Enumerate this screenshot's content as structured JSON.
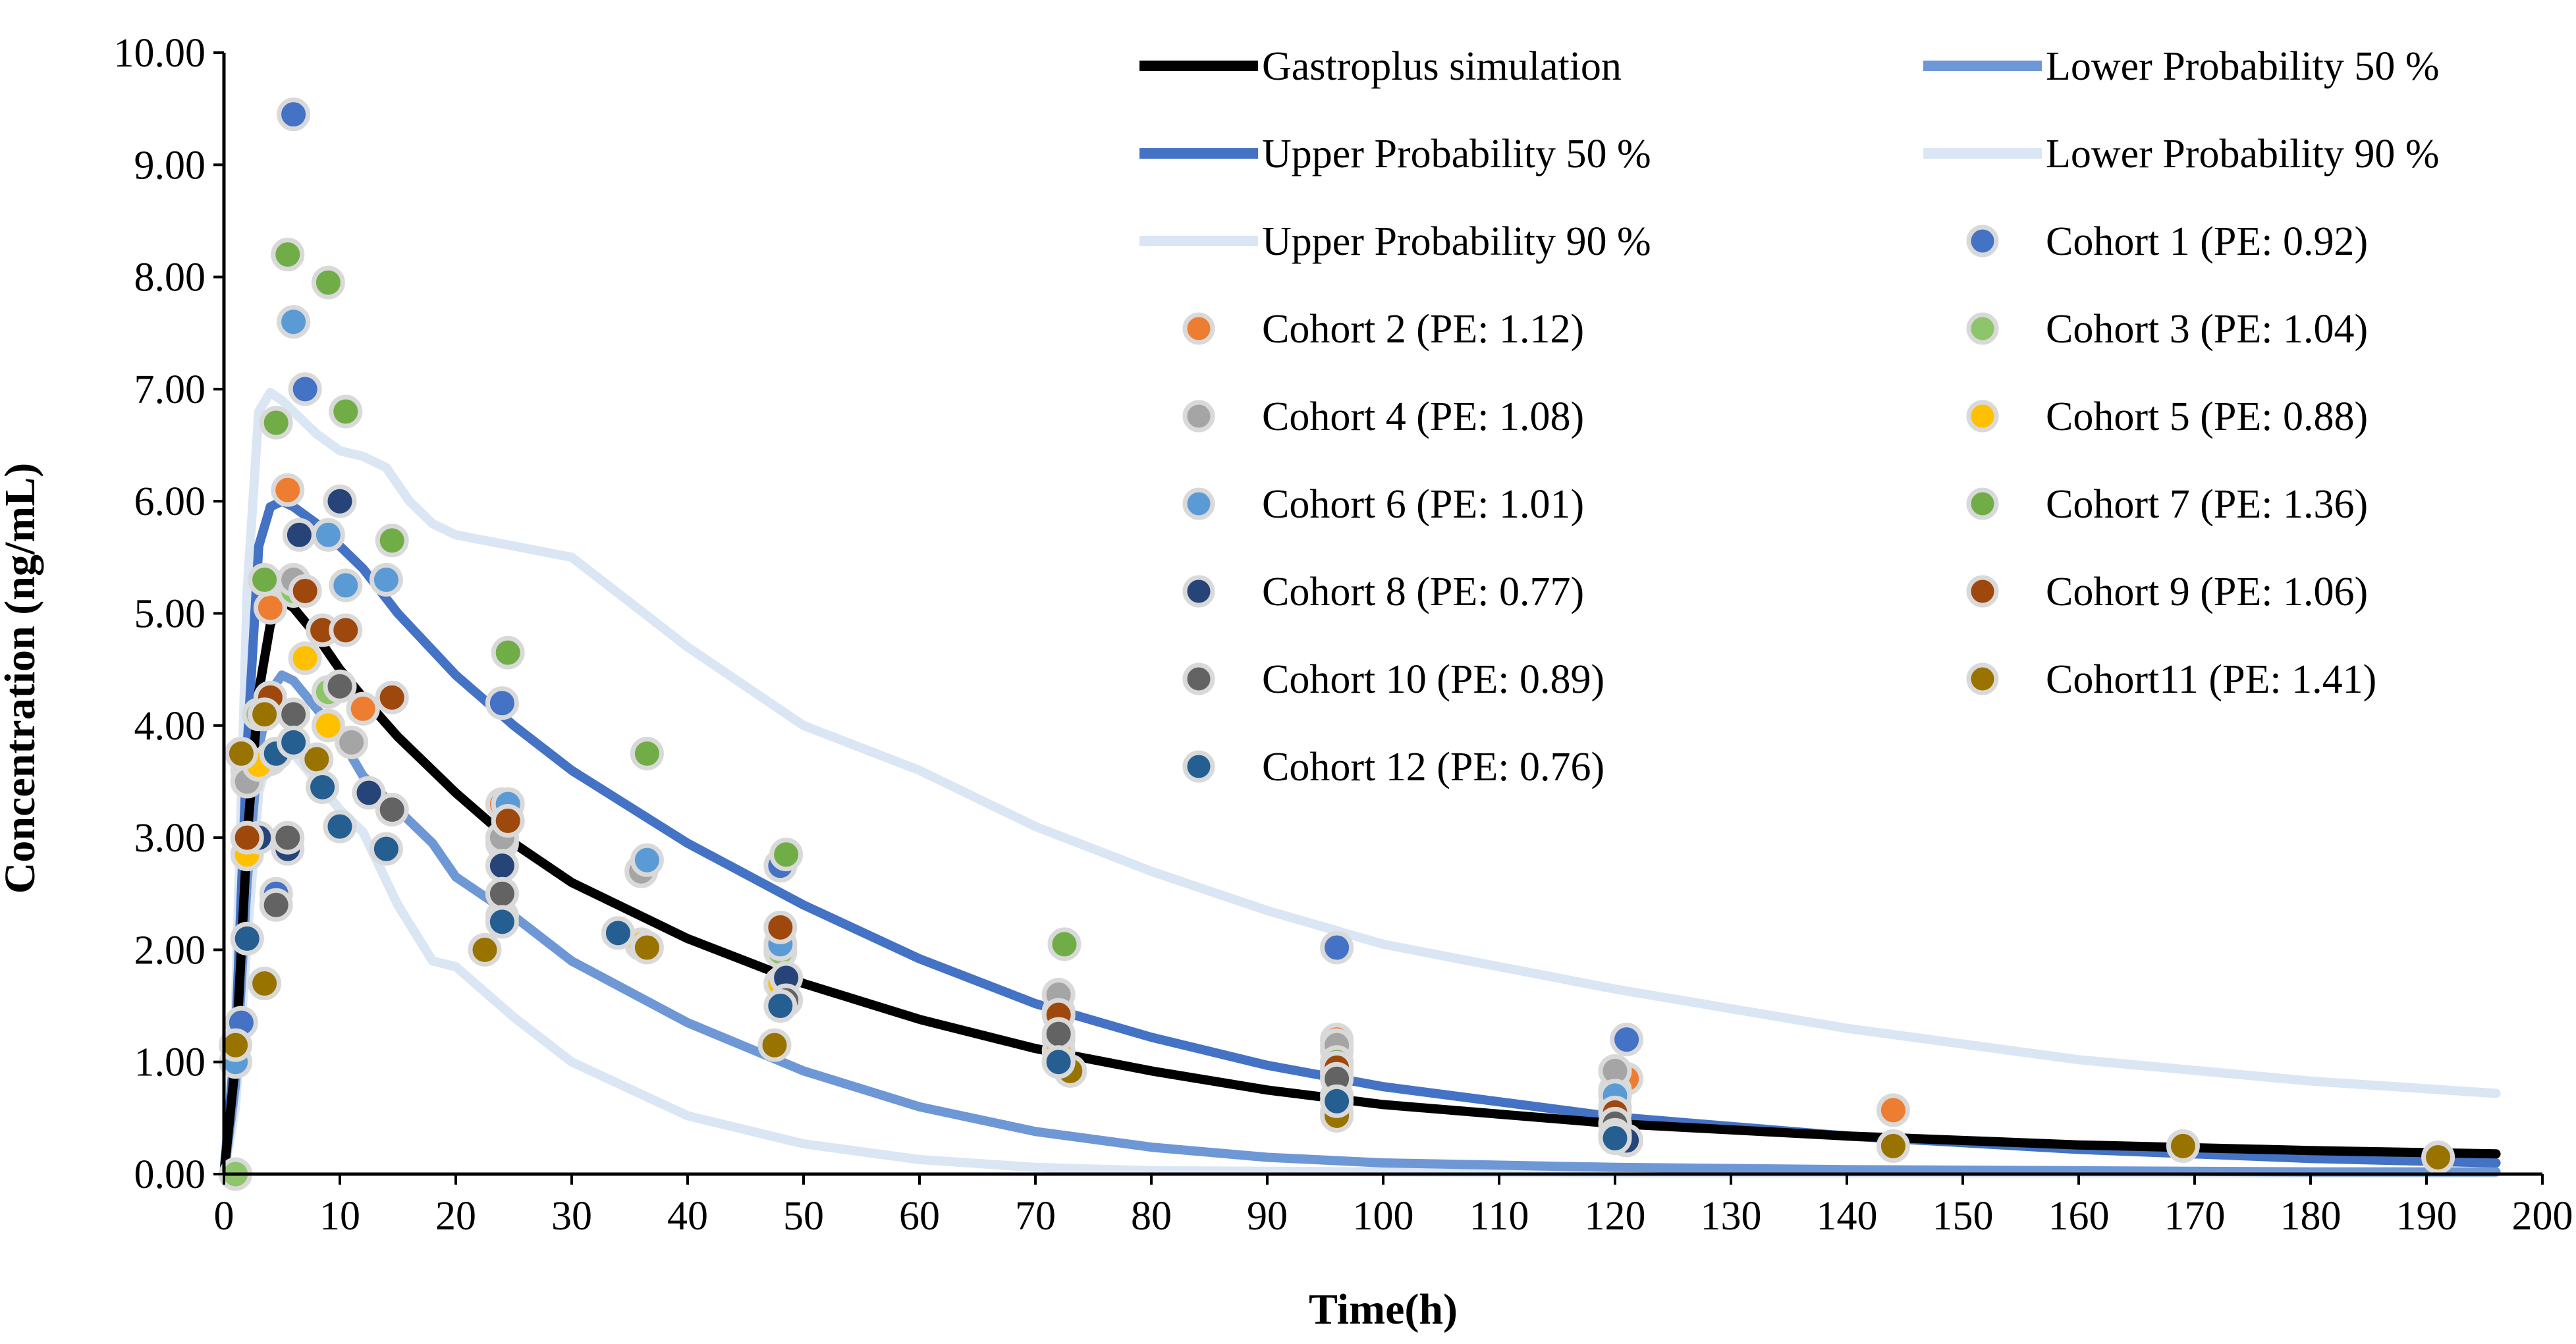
{
  "chart_data": {
    "type": "line",
    "xlabel": "Time(h)",
    "ylabel": "Concentration (ng/mL)",
    "xlim": [
      0,
      200
    ],
    "ylim": [
      0,
      10
    ],
    "x_ticks": [
      "0",
      "10",
      "20",
      "30",
      "40",
      "50",
      "60",
      "70",
      "80",
      "90",
      "100",
      "110",
      "120",
      "130",
      "140",
      "150",
      "160",
      "170",
      "180",
      "190",
      "200"
    ],
    "y_ticks": [
      "0.00",
      "1.00",
      "2.00",
      "3.00",
      "4.00",
      "5.00",
      "6.00",
      "7.00",
      "8.00",
      "9.00",
      "10.00"
    ],
    "legend_position": "top-right",
    "lines": [
      {
        "name": "Gastroplus simulation",
        "color": "#000000",
        "width": 14,
        "x": [
          0,
          1,
          2,
          3,
          4,
          5,
          6,
          8,
          10,
          12,
          15,
          20,
          25,
          30,
          40,
          50,
          60,
          70,
          80,
          90,
          100,
          120,
          140,
          160,
          180,
          196
        ],
        "y": [
          0,
          1.0,
          3.0,
          4.3,
          4.9,
          5.12,
          5.05,
          4.8,
          4.5,
          4.25,
          3.9,
          3.4,
          2.95,
          2.6,
          2.1,
          1.7,
          1.38,
          1.12,
          0.92,
          0.75,
          0.62,
          0.45,
          0.34,
          0.26,
          0.21,
          0.18
        ]
      },
      {
        "name": "Lower Probability 50 %",
        "color": "#6E97D6",
        "width": 14,
        "x": [
          0,
          1,
          2,
          3,
          4,
          5,
          6,
          8,
          10,
          12,
          15,
          18,
          20,
          25,
          30,
          40,
          50,
          60,
          70,
          80,
          90,
          100,
          120,
          140,
          160,
          180,
          196
        ],
        "y": [
          0,
          0.8,
          2.6,
          3.8,
          4.3,
          4.45,
          4.4,
          4.15,
          3.9,
          3.55,
          3.25,
          2.95,
          2.65,
          2.3,
          1.9,
          1.35,
          0.92,
          0.6,
          0.38,
          0.24,
          0.15,
          0.1,
          0.06,
          0.04,
          0.03,
          0.02,
          0.02
        ]
      },
      {
        "name": "Upper Probability 50 %",
        "color": "#4472C4",
        "width": 14,
        "x": [
          0,
          1,
          2,
          3,
          4,
          5,
          6,
          8,
          10,
          12,
          15,
          20,
          25,
          30,
          40,
          50,
          60,
          70,
          80,
          90,
          100,
          120,
          140,
          160,
          180,
          196
        ],
        "y": [
          0,
          1.2,
          3.8,
          5.6,
          5.95,
          6.0,
          5.95,
          5.8,
          5.6,
          5.4,
          5.0,
          4.45,
          4.0,
          3.6,
          2.95,
          2.4,
          1.92,
          1.52,
          1.22,
          0.97,
          0.78,
          0.51,
          0.34,
          0.22,
          0.14,
          0.1
        ]
      },
      {
        "name": "Lower Probability 90 %",
        "color": "#DAE6F3",
        "width": 14,
        "x": [
          0,
          1,
          2,
          3,
          4,
          5,
          6,
          8,
          10,
          12,
          15,
          18,
          20,
          25,
          30,
          40,
          50,
          60,
          70,
          80,
          100,
          120,
          160,
          196
        ],
        "y": [
          0,
          0.6,
          2.1,
          3.4,
          3.8,
          3.85,
          3.75,
          3.5,
          3.25,
          3.05,
          2.4,
          1.9,
          1.85,
          1.4,
          1.0,
          0.52,
          0.27,
          0.13,
          0.06,
          0.03,
          0.02,
          0.01,
          0.01,
          0.01
        ]
      },
      {
        "name": "Upper Probability 90 %",
        "color": "#DAE6F3",
        "width": 14,
        "x": [
          0,
          1,
          2,
          3,
          4,
          5,
          6,
          8,
          10,
          12,
          14,
          16,
          18,
          20,
          25,
          30,
          40,
          50,
          60,
          70,
          80,
          90,
          100,
          120,
          140,
          160,
          180,
          196
        ],
        "y": [
          0,
          1.5,
          5.2,
          6.8,
          6.97,
          6.9,
          6.8,
          6.6,
          6.45,
          6.4,
          6.3,
          6.0,
          5.8,
          5.7,
          5.6,
          5.5,
          4.7,
          4.0,
          3.6,
          3.1,
          2.7,
          2.35,
          2.05,
          1.65,
          1.3,
          1.02,
          0.83,
          0.72
        ]
      }
    ],
    "series": [
      {
        "name": "Cohort 1 (PE: 0.92)",
        "color": "#4472C4",
        "points": [
          [
            6,
            9.45
          ],
          [
            7,
            7.0
          ],
          [
            1.5,
            1.35
          ],
          [
            4.5,
            2.5
          ],
          [
            48,
            2.75
          ],
          [
            24,
            4.2
          ],
          [
            96,
            2.02
          ],
          [
            121,
            1.2
          ],
          [
            12,
            4.15
          ],
          [
            2,
            2.1
          ]
        ]
      },
      {
        "name": "Cohort 2 (PE: 1.12)",
        "color": "#ED7D31",
        "points": [
          [
            5.5,
            6.1
          ],
          [
            4,
            5.05
          ],
          [
            12,
            4.15
          ],
          [
            24,
            3.3
          ],
          [
            48,
            2.0
          ],
          [
            72,
            1.45
          ],
          [
            96,
            1.2
          ],
          [
            121,
            0.85
          ],
          [
            144,
            0.57
          ],
          [
            2,
            3.0
          ]
        ]
      },
      {
        "name": "Cohort 3 (PE: 1.04)",
        "color": "#8CC56A",
        "points": [
          [
            1,
            0.0
          ],
          [
            3,
            4.1
          ],
          [
            6,
            5.2
          ],
          [
            24,
            2.95
          ],
          [
            48,
            1.98
          ],
          [
            72,
            1.2
          ],
          [
            96,
            1.1
          ],
          [
            120,
            0.75
          ],
          [
            9,
            4.3
          ],
          [
            2,
            3.6
          ]
        ]
      },
      {
        "name": "Cohort 4 (PE: 1.08)",
        "color": "#A5A5A5",
        "points": [
          [
            2,
            3.5
          ],
          [
            4,
            3.7
          ],
          [
            6,
            5.3
          ],
          [
            11,
            3.85
          ],
          [
            24,
            3.0
          ],
          [
            36,
            2.7
          ],
          [
            48,
            1.7
          ],
          [
            72,
            1.6
          ],
          [
            96,
            1.15
          ],
          [
            120,
            0.92
          ]
        ]
      },
      {
        "name": "Cohort 5 (PE: 0.88)",
        "color": "#FFC000",
        "points": [
          [
            2,
            2.85
          ],
          [
            3,
            3.65
          ],
          [
            7,
            4.6
          ],
          [
            9,
            4.0
          ],
          [
            24,
            2.3
          ],
          [
            36,
            2.05
          ],
          [
            48,
            1.7
          ],
          [
            72,
            1.1
          ],
          [
            96,
            0.7
          ],
          [
            120,
            0.6
          ]
        ]
      },
      {
        "name": "Cohort 6 (PE: 1.01)",
        "color": "#5B9BD5",
        "points": [
          [
            1,
            1.0
          ],
          [
            6,
            7.6
          ],
          [
            9,
            5.7
          ],
          [
            10.5,
            5.25
          ],
          [
            14,
            5.3
          ],
          [
            24.5,
            3.3
          ],
          [
            36.5,
            2.8
          ],
          [
            48,
            2.05
          ],
          [
            96,
            0.9
          ],
          [
            120,
            0.7
          ]
        ]
      },
      {
        "name": "Cohort 7 (PE: 1.36)",
        "color": "#70AD47",
        "points": [
          [
            5.5,
            8.2
          ],
          [
            9,
            7.95
          ],
          [
            4.5,
            6.7
          ],
          [
            10.5,
            6.8
          ],
          [
            3.5,
            5.3
          ],
          [
            14.5,
            5.65
          ],
          [
            24.5,
            4.65
          ],
          [
            36.5,
            3.75
          ],
          [
            48.5,
            2.85
          ],
          [
            72.5,
            2.05
          ],
          [
            96,
            1.0
          ]
        ]
      },
      {
        "name": "Cohort 8 (PE: 0.77)",
        "color": "#264478",
        "points": [
          [
            6.5,
            5.7
          ],
          [
            10,
            6.0
          ],
          [
            12.5,
            3.4
          ],
          [
            5.5,
            2.9
          ],
          [
            24,
            2.75
          ],
          [
            48.5,
            1.75
          ],
          [
            72,
            1.0
          ],
          [
            96,
            0.55
          ],
          [
            121,
            0.3
          ],
          [
            3,
            3.0
          ]
        ]
      },
      {
        "name": "Cohort 9 (PE: 1.06)",
        "color": "#9E480E",
        "points": [
          [
            7,
            5.2
          ],
          [
            8.5,
            4.85
          ],
          [
            10.5,
            4.85
          ],
          [
            4,
            4.25
          ],
          [
            14.5,
            4.25
          ],
          [
            2,
            3.0
          ],
          [
            24.5,
            3.15
          ],
          [
            48,
            2.2
          ],
          [
            72,
            1.42
          ],
          [
            96,
            0.95
          ],
          [
            120,
            0.55
          ]
        ]
      },
      {
        "name": "Cohort 10 (PE: 0.89)",
        "color": "#636363",
        "points": [
          [
            6,
            4.1
          ],
          [
            10,
            4.35
          ],
          [
            14.5,
            3.25
          ],
          [
            5.5,
            3.0
          ],
          [
            4.5,
            2.4
          ],
          [
            24,
            2.5
          ],
          [
            48.5,
            1.55
          ],
          [
            72,
            1.25
          ],
          [
            96,
            0.85
          ],
          [
            120,
            0.45
          ]
        ]
      },
      {
        "name": "Cohort11 (PE: 1.41)",
        "color": "#997300",
        "points": [
          [
            1.5,
            3.75
          ],
          [
            3.5,
            4.1
          ],
          [
            8,
            3.7
          ],
          [
            3.5,
            1.7
          ],
          [
            1,
            1.15
          ],
          [
            22.5,
            2.0
          ],
          [
            36.5,
            2.02
          ],
          [
            47.5,
            1.15
          ],
          [
            73,
            0.92
          ],
          [
            96,
            0.52
          ],
          [
            120,
            0.35
          ],
          [
            144,
            0.25
          ],
          [
            169,
            0.25
          ],
          [
            191,
            0.15
          ]
        ]
      },
      {
        "name": "Cohort 12 (PE: 0.76)",
        "color": "#255E91",
        "points": [
          [
            2,
            2.1
          ],
          [
            4.5,
            3.75
          ],
          [
            6,
            3.85
          ],
          [
            8.5,
            3.45
          ],
          [
            10,
            3.1
          ],
          [
            14,
            2.9
          ],
          [
            24,
            2.25
          ],
          [
            34,
            2.15
          ],
          [
            48,
            1.5
          ],
          [
            72,
            1.0
          ],
          [
            96,
            0.65
          ],
          [
            120,
            0.32
          ]
        ]
      }
    ]
  },
  "legend": [
    {
      "label": "Gastroplus simulation",
      "kind": "line",
      "color": "#000000"
    },
    {
      "label": "Lower Probability 50 %",
      "kind": "line",
      "color": "#6E97D6"
    },
    {
      "label": "Upper Probability 50 %",
      "kind": "line",
      "color": "#4472C4"
    },
    {
      "label": "Lower Probability 90 %",
      "kind": "line",
      "color": "#DAE6F3"
    },
    {
      "label": "Upper Probability 90 %",
      "kind": "line",
      "color": "#DAE6F3"
    },
    {
      "label": "Cohort 1 (PE: 0.92)",
      "kind": "marker",
      "color": "#4472C4"
    },
    {
      "label": "Cohort 2 (PE: 1.12)",
      "kind": "marker",
      "color": "#ED7D31"
    },
    {
      "label": "Cohort 3 (PE: 1.04)",
      "kind": "marker",
      "color": "#8CC56A"
    },
    {
      "label": "Cohort 4 (PE: 1.08)",
      "kind": "marker",
      "color": "#A5A5A5"
    },
    {
      "label": "Cohort 5 (PE: 0.88)",
      "kind": "marker",
      "color": "#FFC000"
    },
    {
      "label": "Cohort 6 (PE: 1.01)",
      "kind": "marker",
      "color": "#5B9BD5"
    },
    {
      "label": "Cohort 7 (PE: 1.36)",
      "kind": "marker",
      "color": "#70AD47"
    },
    {
      "label": "Cohort 8 (PE: 0.77)",
      "kind": "marker",
      "color": "#264478"
    },
    {
      "label": "Cohort 9 (PE: 1.06)",
      "kind": "marker",
      "color": "#9E480E"
    },
    {
      "label": "Cohort 10 (PE: 0.89)",
      "kind": "marker",
      "color": "#636363"
    },
    {
      "label": "Cohort11 (PE: 1.41)",
      "kind": "marker",
      "color": "#997300"
    },
    {
      "label": "Cohort 12 (PE: 0.76)",
      "kind": "marker",
      "color": "#255E91"
    }
  ]
}
